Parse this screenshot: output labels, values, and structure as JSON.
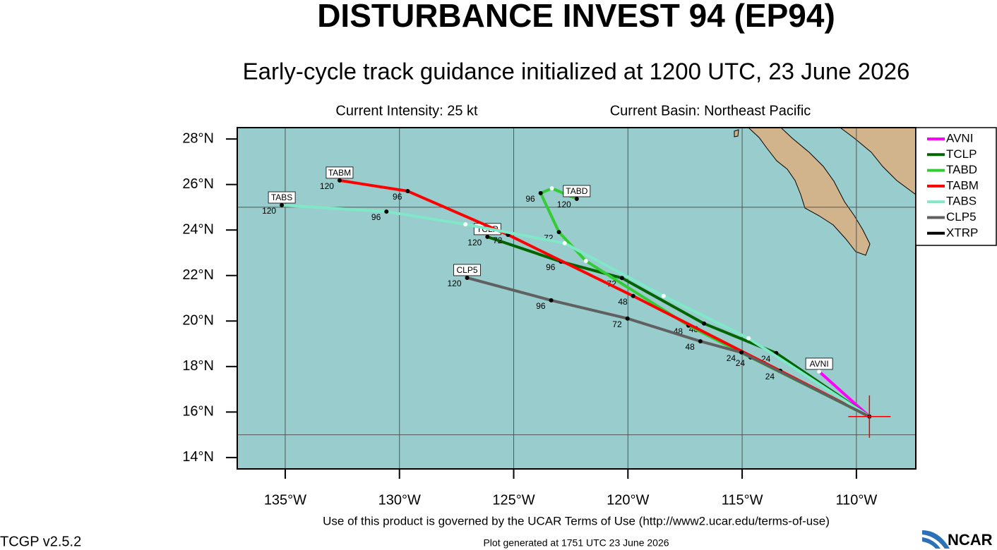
{
  "chart_data": {
    "type": "line",
    "title": "DISTURBANCE INVEST 94 (EP94)",
    "subtitle": "Early-cycle track guidance initialized at 1200 UTC, 23 June 2026",
    "info_left": "Current Intensity: 25 kt",
    "info_right": "Current Basin: Northeast Pacific",
    "footer_terms": "Use of this product is governed by the UCAR Terms of Use (http://www2.ucar.edu/terms-of-use)",
    "footer_generated": "Plot generated at 1751 UTC  23 June 2026",
    "version": "TCGP v2.5.2",
    "logo": "NCAR",
    "xlim": [
      -137.1,
      -107.4
    ],
    "ylim": [
      13.5,
      28.5
    ],
    "xticks": [
      {
        "value": -135,
        "label": "135°W"
      },
      {
        "value": -130,
        "label": "130°W"
      },
      {
        "value": -125,
        "label": "125°W"
      },
      {
        "value": -120,
        "label": "120°W"
      },
      {
        "value": -115,
        "label": "115°W"
      },
      {
        "value": -110,
        "label": "110°W"
      }
    ],
    "yticks": [
      {
        "value": 28,
        "label": "28°N"
      },
      {
        "value": 26,
        "label": "26°N"
      },
      {
        "value": 24,
        "label": "24°N"
      },
      {
        "value": 22,
        "label": "22°N"
      },
      {
        "value": 20,
        "label": "20°N"
      },
      {
        "value": 18,
        "label": "18°N"
      },
      {
        "value": 16,
        "label": "16°N"
      },
      {
        "value": 14,
        "label": "14°N"
      }
    ],
    "ygrid": [
      25,
      15
    ],
    "grid": true,
    "legend": "right",
    "series": [
      {
        "name": "AVNI",
        "color": "#ff00ff",
        "x": [
          -109.43,
          -111.63
        ],
        "y": [
          15.8,
          17.78
        ],
        "hours": [
          null,
          null
        ]
      },
      {
        "name": "TCLP",
        "color": "#006400",
        "x": [
          -109.43,
          -113.51,
          -116.67,
          -120.26,
          -122.93,
          -126.15
        ],
        "y": [
          15.8,
          18.59,
          19.89,
          21.89,
          22.61,
          23.7
        ],
        "hours": [
          null,
          24,
          48,
          72,
          96,
          120
        ]
      },
      {
        "name": "TABD",
        "color": "#33cc33",
        "x": [
          -109.43,
          -114.63,
          -117.35,
          -121.84,
          -123.02,
          -123.82,
          -123.33,
          -122.24
        ],
        "y": [
          15.8,
          18.4,
          19.8,
          22.64,
          23.91,
          25.62,
          25.83,
          25.37
        ],
        "hours": [
          null,
          24,
          48,
          null,
          72,
          96,
          null,
          120
        ]
      },
      {
        "name": "TABM",
        "color": "#ff0000",
        "x": [
          -109.43,
          -113.33,
          -119.77,
          -125.25,
          -129.64,
          -132.62
        ],
        "y": [
          15.8,
          17.81,
          21.1,
          23.79,
          25.71,
          26.18
        ],
        "hours": [
          null,
          24,
          48,
          72,
          96,
          120
        ]
      },
      {
        "name": "TABS",
        "color": "#80e8c8",
        "x": [
          -109.43,
          -114.72,
          -118.44,
          -122.77,
          -127.11,
          -130.57,
          -135.15
        ],
        "y": [
          15.8,
          19.24,
          21.1,
          23.42,
          24.25,
          24.81,
          25.09
        ],
        "hours": [
          null,
          null,
          null,
          null,
          null,
          96,
          120
        ]
      },
      {
        "name": "CLP5",
        "color": "#606060",
        "x": [
          -109.43,
          -115.03,
          -116.83,
          -120.02,
          -123.36,
          -127.04
        ],
        "y": [
          15.8,
          18.62,
          19.11,
          20.11,
          20.91,
          21.9
        ],
        "hours": [
          null,
          24,
          48,
          72,
          96,
          120
        ]
      },
      {
        "name": "XTRP",
        "color": "#000000",
        "x": [
          -109.43
        ],
        "y": [
          15.8
        ],
        "hours": [
          null
        ]
      }
    ]
  }
}
